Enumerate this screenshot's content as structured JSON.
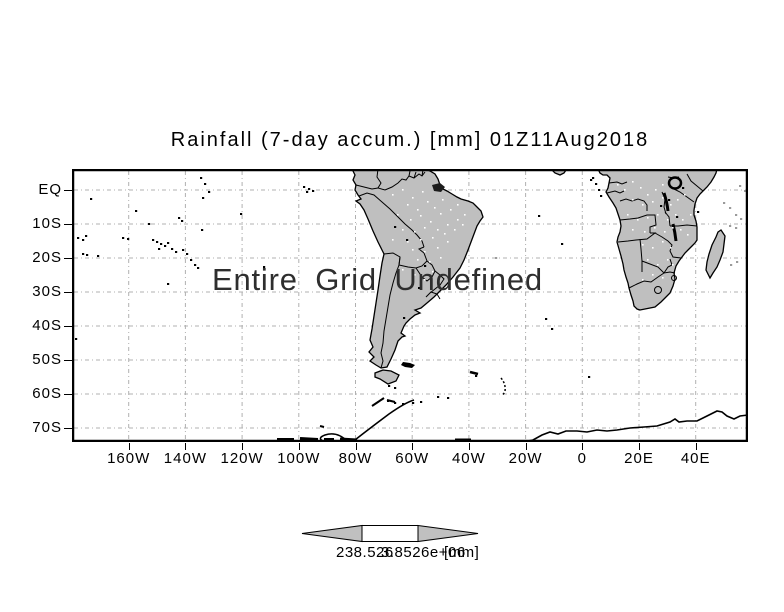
{
  "title": "Rainfall (7-day accum.) [mm] 01Z11Aug2018",
  "map": {
    "undefined_message": "Entire Grid Undefined",
    "axes": {
      "lat_ticks": [
        "EQ",
        "10S",
        "20S",
        "30S",
        "40S",
        "50S",
        "60S",
        "70S"
      ],
      "lon_ticks": [
        "160W",
        "140W",
        "120W",
        "100W",
        "80W",
        "60W",
        "40W",
        "20W",
        "0",
        "20E",
        "40E"
      ]
    },
    "features": [
      "south-america",
      "tierra-del-fuego",
      "africa",
      "madagascar",
      "antarctic-peninsula",
      "antarctica-coast",
      "falkland-islands",
      "pacific-islands",
      "atlantic-islands"
    ]
  },
  "colorbar": {
    "min_label": "238.526",
    "max_label": "3.8526e+06",
    "units_label": "[mm]",
    "arrow_fill": "#c0c0c0",
    "mid_fill": "#ffffff"
  },
  "colors": {
    "background": "#ffffff",
    "land": "#bfbfbf",
    "grid_line": "#b0b0b0",
    "outline": "#000000",
    "text": "#000000",
    "undefined_text": "#2e2e2e"
  }
}
